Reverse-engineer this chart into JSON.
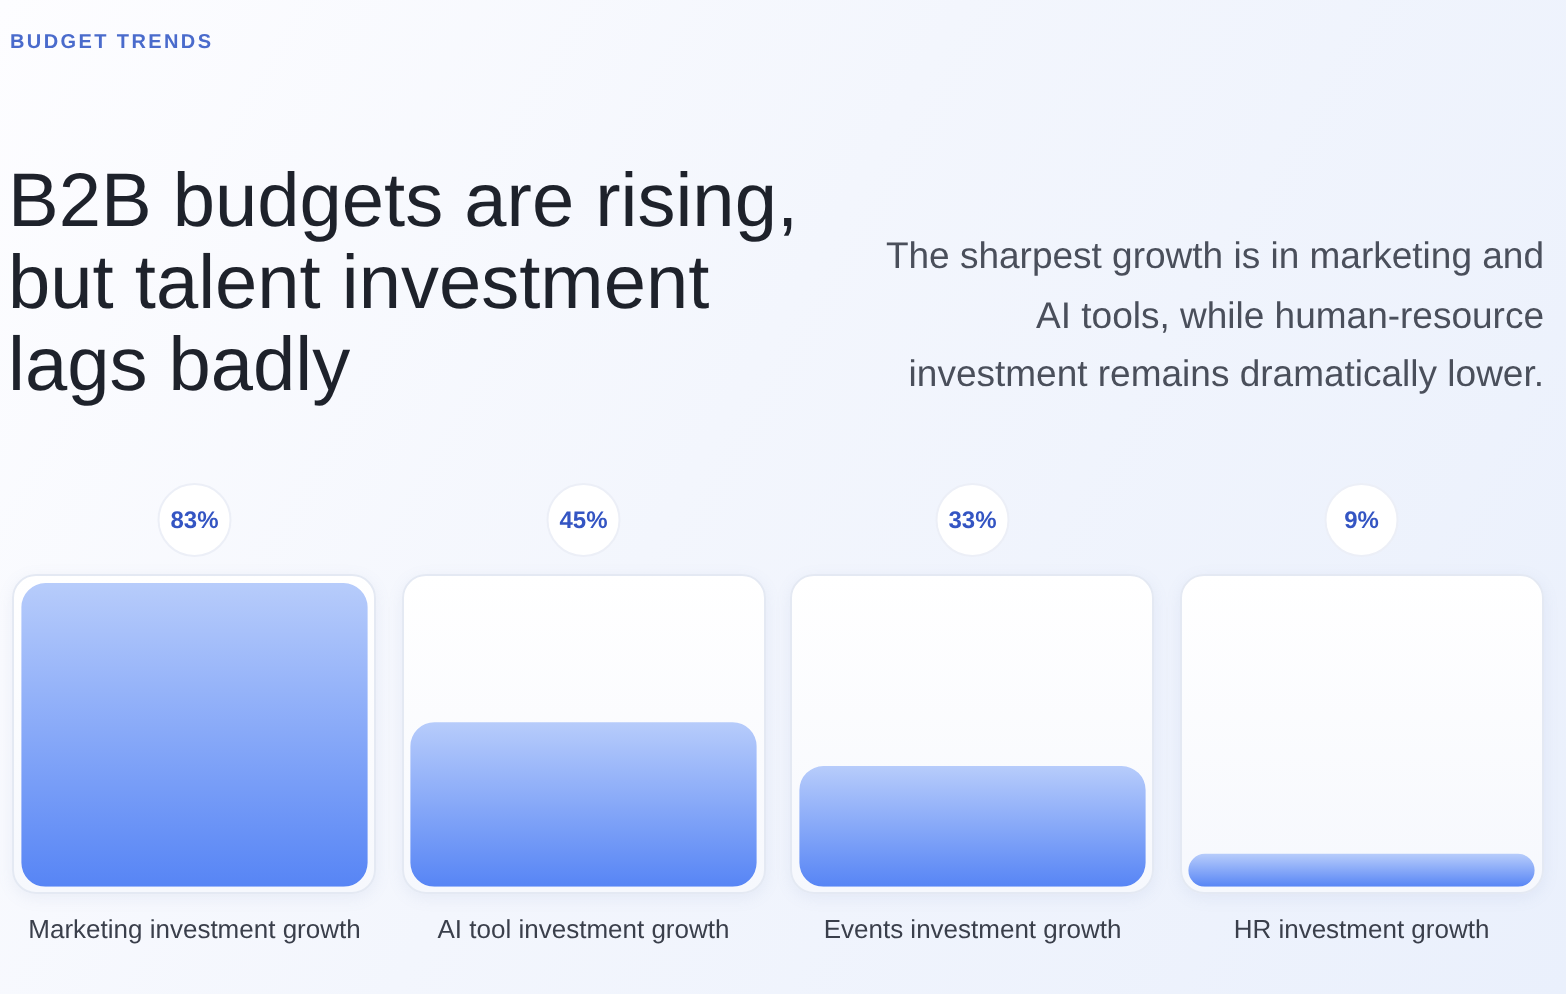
{
  "chart_data": {
    "type": "bar",
    "title": "B2B budgets are rising, but talent investment lags badly",
    "subtitle": "The sharpest growth is in marketing and AI tools, while human-resource investment remains dramatically lower.",
    "annotations": [
      "BUDGET TRENDS"
    ],
    "categories": [
      "Marketing investment growth",
      "AI tool investment growth",
      "Events investment growth",
      "HR investment growth"
    ],
    "values": [
      83,
      45,
      33,
      9
    ],
    "value_labels": [
      "83%",
      "45%",
      "33%",
      "9%"
    ],
    "color": "#6e98f7"
  }
}
